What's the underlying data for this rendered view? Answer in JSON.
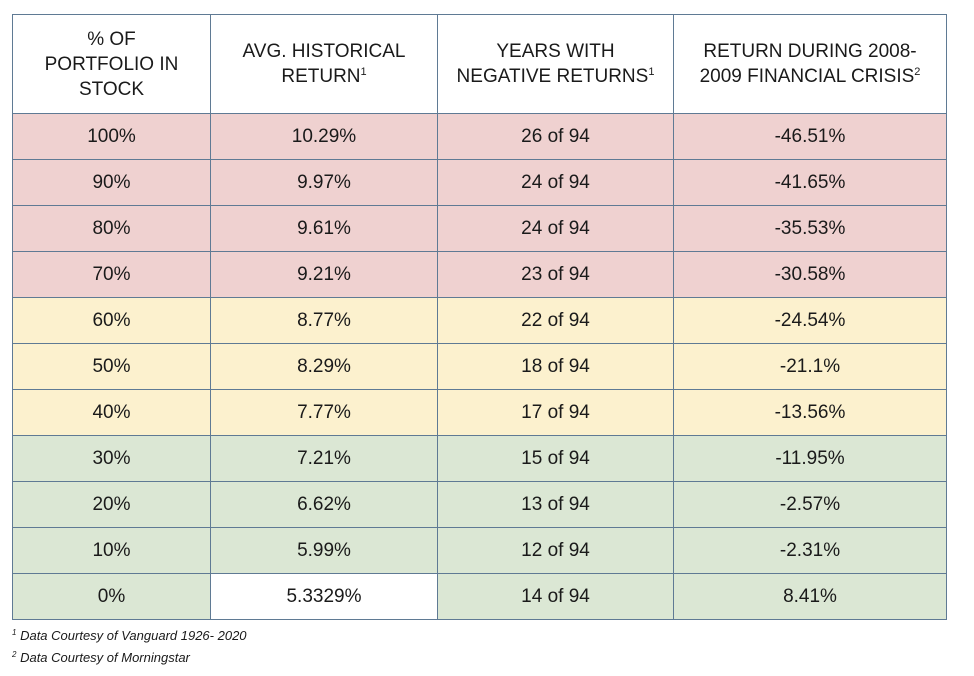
{
  "chart_data": {
    "type": "table",
    "columns": [
      {
        "label": "% OF PORTFOLIO IN STOCK",
        "sup": ""
      },
      {
        "label": "AVG. HISTORICAL RETURN",
        "sup": "1"
      },
      {
        "label": "YEARS WITH NEGATIVE RETURNS",
        "sup": "1"
      },
      {
        "label": "RETURN DURING 2008-2009 FINANCIAL CRISIS",
        "sup": "2"
      }
    ],
    "rows": [
      {
        "band": "red",
        "cells": [
          "100%",
          "10.29%",
          "26 of 94",
          "-46.51%"
        ]
      },
      {
        "band": "red",
        "cells": [
          "90%",
          "9.97%",
          "24 of 94",
          "-41.65%"
        ]
      },
      {
        "band": "red",
        "cells": [
          "80%",
          "9.61%",
          "24 of 94",
          "-35.53%"
        ]
      },
      {
        "band": "red",
        "cells": [
          "70%",
          "9.21%",
          "23 of 94",
          "-30.58%"
        ]
      },
      {
        "band": "yellow",
        "cells": [
          "60%",
          "8.77%",
          "22 of 94",
          "-24.54%"
        ]
      },
      {
        "band": "yellow",
        "cells": [
          "50%",
          "8.29%",
          "18 of 94",
          "-21.1%"
        ]
      },
      {
        "band": "yellow",
        "cells": [
          "40%",
          "7.77%",
          "17 of 94",
          "-13.56%"
        ]
      },
      {
        "band": "green",
        "cells": [
          "30%",
          "7.21%",
          "15 of 94",
          "-11.95%"
        ]
      },
      {
        "band": "green",
        "cells": [
          "20%",
          "6.62%",
          "13 of 94",
          "-2.57%"
        ]
      },
      {
        "band": "green",
        "cells": [
          "10%",
          "5.99%",
          "12 of 94",
          "-2.31%"
        ]
      },
      {
        "band": "green",
        "cells": [
          "0%",
          "5.3329%",
          "14 of 94",
          "8.41%"
        ]
      }
    ],
    "band_colors": {
      "red": "#efd1d0",
      "yellow": "#fcf1ce",
      "green": "#dbe7d4"
    },
    "footnotes": [
      {
        "mark": "1",
        "text": "Data Courtesy of Vanguard 1926- 2020"
      },
      {
        "mark": "2",
        "text": "Data Courtesy of Morningstar"
      }
    ]
  }
}
